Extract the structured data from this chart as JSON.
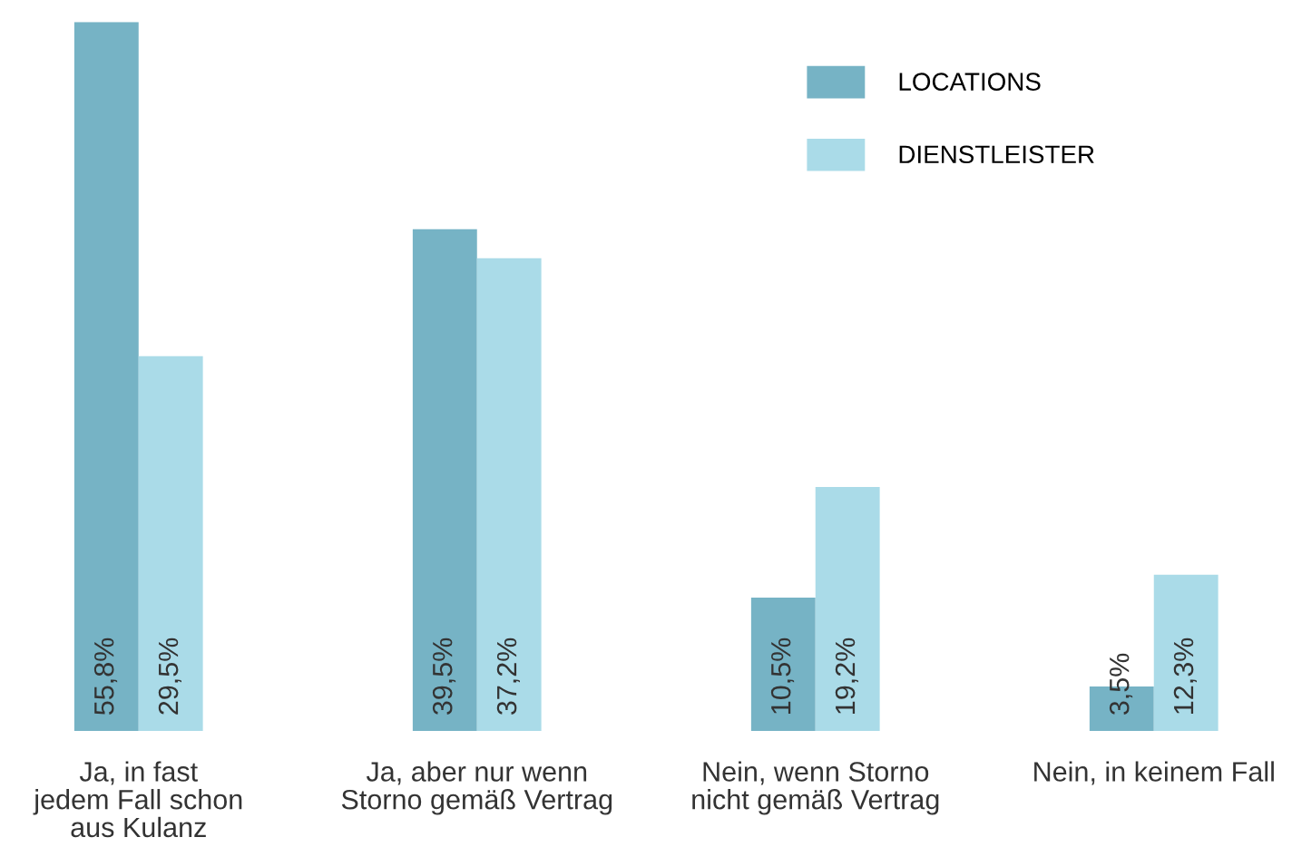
{
  "chart_data": {
    "type": "bar",
    "categories": [
      "Ja, in fast\njedem Fall schon\naus Kulanz",
      "Ja, aber nur wenn\nStorno gemäß Vertrag",
      "Nein, wenn Storno\nnicht gemäß Vertrag",
      "Nein, in keinem Fall"
    ],
    "series": [
      {
        "name": "LOCATIONS",
        "color": "#76b3c5",
        "values": [
          55.8,
          39.5,
          10.5,
          3.5
        ],
        "value_labels": [
          "55,8%",
          "39,5%",
          "10,5%",
          "3,5%"
        ]
      },
      {
        "name": "DIENSTLEISTER",
        "color": "#aadbe8",
        "values": [
          29.5,
          37.2,
          19.2,
          12.3
        ],
        "value_labels": [
          "29,5%",
          "37,2%",
          "19,2%",
          "12,3%"
        ]
      }
    ],
    "legend": "top right",
    "grid": false,
    "tick_labels": "x"
  }
}
